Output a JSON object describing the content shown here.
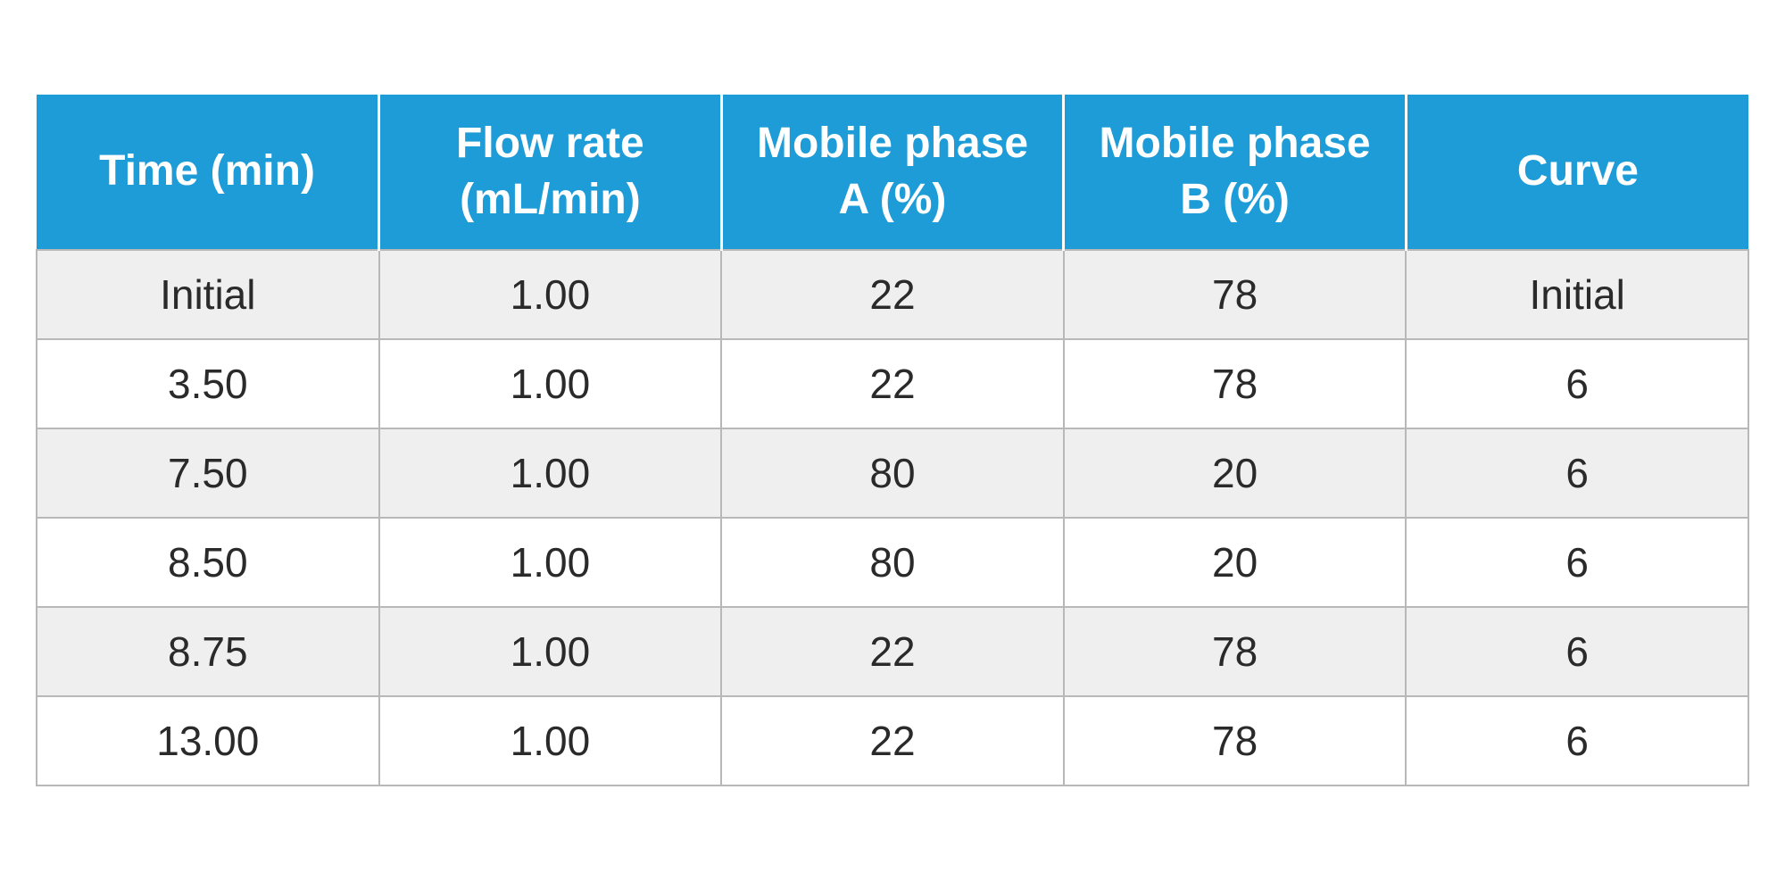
{
  "table": {
    "type": "table",
    "header_bg_color": "#1e9cd7",
    "header_text_color": "#ffffff",
    "header_fontsize": 48,
    "body_fontsize": 46,
    "body_text_color": "#2a2a2a",
    "border_color": "#b8b8b8",
    "row_odd_bg": "#efefef",
    "row_even_bg": "#ffffff",
    "columns": [
      {
        "label": "Time (min)"
      },
      {
        "label": "Flow rate (mL/min)"
      },
      {
        "label": "Mobile phase A (%)"
      },
      {
        "label": "Mobile phase B (%)"
      },
      {
        "label": "Curve"
      }
    ],
    "rows": [
      [
        "Initial",
        "1.00",
        "22",
        "78",
        "Initial"
      ],
      [
        "3.50",
        "1.00",
        "22",
        "78",
        "6"
      ],
      [
        "7.50",
        "1.00",
        "80",
        "20",
        "6"
      ],
      [
        "8.50",
        "1.00",
        "80",
        "20",
        "6"
      ],
      [
        "8.75",
        "1.00",
        "22",
        "78",
        "6"
      ],
      [
        "13.00",
        "1.00",
        "22",
        "78",
        "6"
      ]
    ]
  }
}
